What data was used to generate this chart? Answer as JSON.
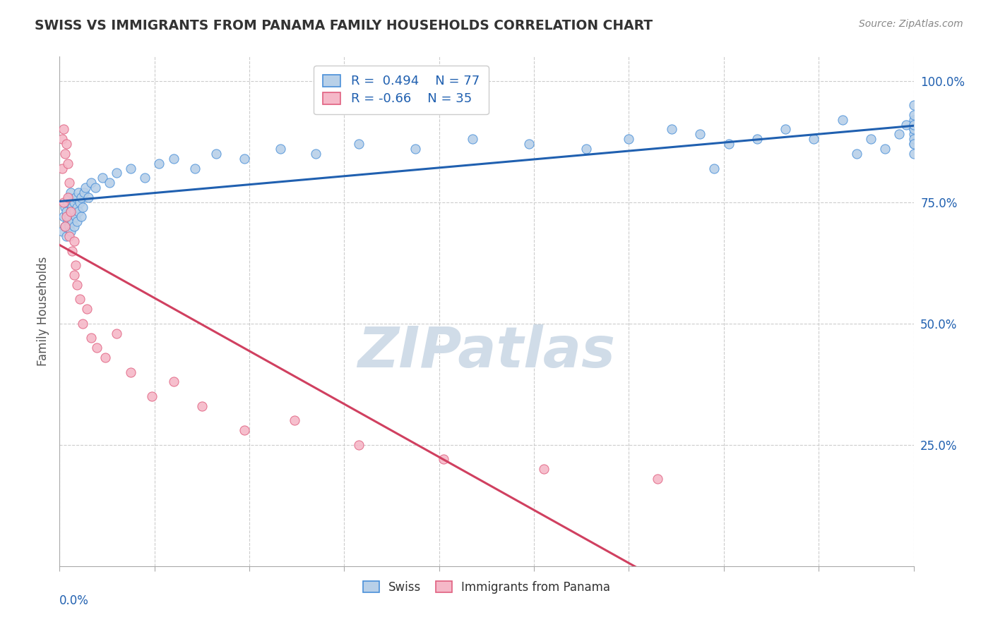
{
  "title": "SWISS VS IMMIGRANTS FROM PANAMA FAMILY HOUSEHOLDS CORRELATION CHART",
  "source": "Source: ZipAtlas.com",
  "ylabel": "Family Households",
  "xmin": 0.0,
  "xmax": 0.6,
  "ymin": 0.0,
  "ymax": 1.05,
  "swiss_R": 0.494,
  "swiss_N": 77,
  "panama_R": -0.66,
  "panama_N": 35,
  "swiss_color": "#b8d0e8",
  "swiss_edge_color": "#4a90d9",
  "swiss_line_color": "#2060b0",
  "panama_color": "#f5b8c8",
  "panama_edge_color": "#e06080",
  "panama_line_color": "#d04060",
  "watermark_text": "ZIPatlas",
  "watermark_color": "#d0dce8",
  "swiss_scatter_x": [
    0.002,
    0.003,
    0.004,
    0.004,
    0.005,
    0.005,
    0.006,
    0.006,
    0.007,
    0.007,
    0.007,
    0.008,
    0.008,
    0.008,
    0.009,
    0.009,
    0.01,
    0.01,
    0.01,
    0.011,
    0.011,
    0.012,
    0.012,
    0.013,
    0.013,
    0.014,
    0.015,
    0.015,
    0.016,
    0.017,
    0.018,
    0.02,
    0.022,
    0.025,
    0.03,
    0.035,
    0.04,
    0.05,
    0.06,
    0.07,
    0.08,
    0.095,
    0.11,
    0.13,
    0.155,
    0.18,
    0.21,
    0.25,
    0.29,
    0.33,
    0.37,
    0.4,
    0.43,
    0.45,
    0.46,
    0.47,
    0.49,
    0.51,
    0.53,
    0.55,
    0.56,
    0.57,
    0.58,
    0.59,
    0.595,
    0.6,
    0.6,
    0.6,
    0.6,
    0.6,
    0.6,
    0.6,
    0.6,
    0.6,
    0.6,
    0.6,
    0.6
  ],
  "swiss_scatter_y": [
    0.69,
    0.72,
    0.7,
    0.74,
    0.68,
    0.73,
    0.71,
    0.75,
    0.7,
    0.72,
    0.76,
    0.69,
    0.73,
    0.77,
    0.71,
    0.74,
    0.7,
    0.73,
    0.75,
    0.72,
    0.76,
    0.71,
    0.74,
    0.73,
    0.77,
    0.75,
    0.72,
    0.76,
    0.74,
    0.77,
    0.78,
    0.76,
    0.79,
    0.78,
    0.8,
    0.79,
    0.81,
    0.82,
    0.8,
    0.83,
    0.84,
    0.82,
    0.85,
    0.84,
    0.86,
    0.85,
    0.87,
    0.86,
    0.88,
    0.87,
    0.86,
    0.88,
    0.9,
    0.89,
    0.82,
    0.87,
    0.88,
    0.9,
    0.88,
    0.92,
    0.85,
    0.88,
    0.86,
    0.89,
    0.91,
    0.9,
    0.87,
    0.89,
    0.85,
    0.91,
    0.88,
    0.92,
    0.87,
    0.9,
    0.93,
    0.91,
    0.95
  ],
  "panama_scatter_x": [
    0.002,
    0.002,
    0.003,
    0.003,
    0.004,
    0.004,
    0.005,
    0.005,
    0.006,
    0.006,
    0.007,
    0.007,
    0.008,
    0.009,
    0.01,
    0.01,
    0.011,
    0.012,
    0.014,
    0.016,
    0.019,
    0.022,
    0.026,
    0.032,
    0.04,
    0.05,
    0.065,
    0.08,
    0.1,
    0.13,
    0.165,
    0.21,
    0.27,
    0.34,
    0.42
  ],
  "panama_scatter_y": [
    0.88,
    0.82,
    0.9,
    0.75,
    0.85,
    0.7,
    0.87,
    0.72,
    0.83,
    0.76,
    0.79,
    0.68,
    0.73,
    0.65,
    0.67,
    0.6,
    0.62,
    0.58,
    0.55,
    0.5,
    0.53,
    0.47,
    0.45,
    0.43,
    0.48,
    0.4,
    0.35,
    0.38,
    0.33,
    0.28,
    0.3,
    0.25,
    0.22,
    0.2,
    0.18
  ],
  "panama_line_start_x": 0.0,
  "panama_line_end_solid_x": 0.42,
  "panama_line_end_dashed_x": 0.6
}
